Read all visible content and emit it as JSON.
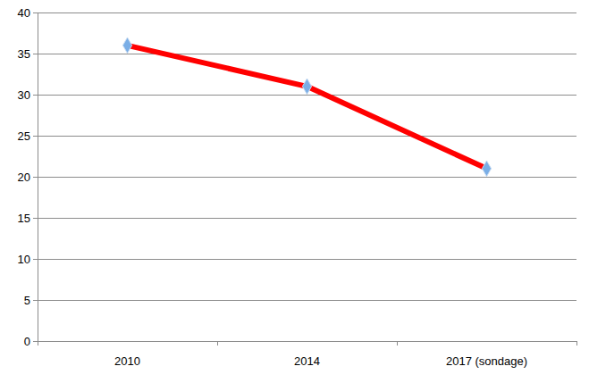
{
  "chart_data": {
    "type": "line",
    "categories": [
      "2010",
      "2014",
      "2017 (sondage)"
    ],
    "values": [
      36,
      31,
      21
    ],
    "color": "#ff0000",
    "marker": "diamond",
    "ylim": [
      0,
      40
    ],
    "yticks": [
      0,
      5,
      10,
      15,
      20,
      25,
      30,
      35,
      40
    ],
    "grid": true
  }
}
